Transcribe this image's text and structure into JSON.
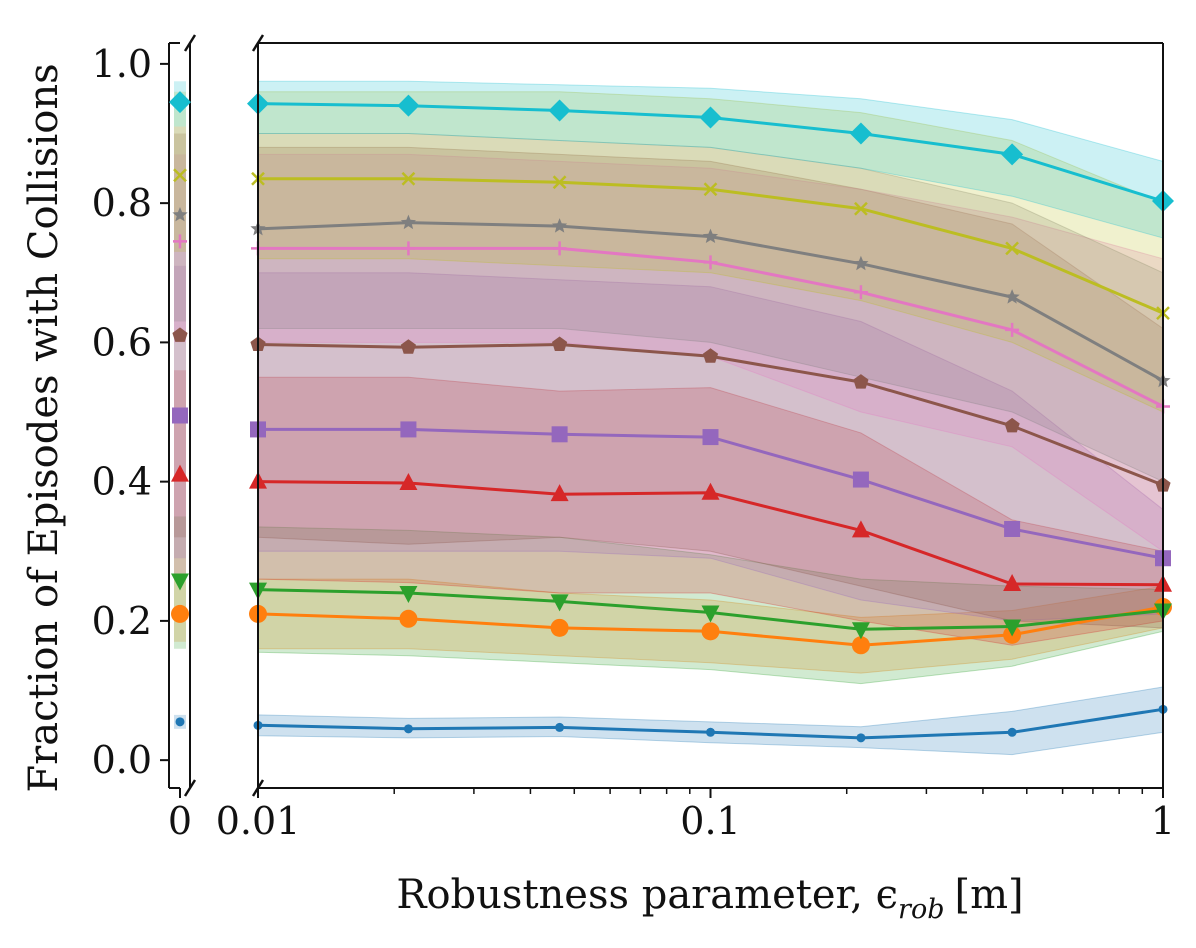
{
  "chart_data": {
    "type": "line",
    "xlabel": "Robustness parameter, ϵ",
    "xlabel_sub": "rob",
    "xlabel_unit": "[m]",
    "ylabel": "Fraction of Episodes with Collisions",
    "x_scale": "log",
    "x_broken_axis": true,
    "x_zero_tick": "0",
    "x": [
      0.01,
      0.0215,
      0.0464,
      0.1,
      0.215,
      0.464,
      1.0
    ],
    "xticks": [
      {
        "value": 0.01,
        "label": "0.01"
      },
      {
        "value": 0.1,
        "label": "0.1"
      },
      {
        "value": 1,
        "label": "1"
      }
    ],
    "yticks": [
      {
        "value": 0.0,
        "label": "0.0"
      },
      {
        "value": 0.2,
        "label": "0.2"
      },
      {
        "value": 0.4,
        "label": "0.4"
      },
      {
        "value": 0.6,
        "label": "0.6"
      },
      {
        "value": 0.8,
        "label": "0.8"
      },
      {
        "value": 1.0,
        "label": "1.0"
      }
    ],
    "xlim": [
      0.01,
      1.0
    ],
    "ylim": [
      -0.04,
      1.03
    ],
    "grid": false,
    "series": [
      {
        "color": "#1f77b4",
        "marker": "circle-small",
        "zero": 0.055,
        "values": [
          0.05,
          0.045,
          0.047,
          0.04,
          0.032,
          0.04,
          0.073
        ],
        "lower": [
          0.035,
          0.032,
          0.034,
          0.025,
          0.018,
          0.008,
          0.04
        ],
        "upper": [
          0.065,
          0.06,
          0.062,
          0.055,
          0.048,
          0.07,
          0.105
        ],
        "zero_band": [
          0.045,
          0.065
        ]
      },
      {
        "color": "#ff7f0e",
        "marker": "circle",
        "zero": 0.21,
        "values": [
          0.21,
          0.203,
          0.19,
          0.185,
          0.165,
          0.18,
          0.22
        ],
        "lower": [
          0.16,
          0.16,
          0.15,
          0.14,
          0.125,
          0.145,
          0.19
        ],
        "upper": [
          0.26,
          0.26,
          0.24,
          0.23,
          0.205,
          0.215,
          0.25
        ],
        "zero_band": [
          0.17,
          0.26
        ]
      },
      {
        "color": "#2ca02c",
        "marker": "triangle-down",
        "zero": 0.258,
        "values": [
          0.245,
          0.24,
          0.228,
          0.212,
          0.188,
          0.192,
          0.215
        ],
        "lower": [
          0.155,
          0.15,
          0.14,
          0.13,
          0.11,
          0.135,
          0.185
        ],
        "upper": [
          0.335,
          0.33,
          0.32,
          0.295,
          0.26,
          0.25,
          0.245
        ],
        "zero_band": [
          0.16,
          0.35
        ]
      },
      {
        "color": "#d62728",
        "marker": "triangle-up",
        "zero": 0.41,
        "values": [
          0.4,
          0.398,
          0.382,
          0.384,
          0.33,
          0.253,
          0.252
        ],
        "lower": [
          0.26,
          0.255,
          0.24,
          0.24,
          0.2,
          0.165,
          0.2
        ],
        "upper": [
          0.55,
          0.55,
          0.53,
          0.535,
          0.47,
          0.345,
          0.3
        ],
        "zero_band": [
          0.26,
          0.56
        ]
      },
      {
        "color": "#9467bd",
        "marker": "square",
        "zero": 0.495,
        "values": [
          0.475,
          0.475,
          0.468,
          0.464,
          0.403,
          0.332,
          0.29
        ],
        "lower": [
          0.3,
          0.3,
          0.3,
          0.29,
          0.23,
          0.2,
          0.21
        ],
        "upper": [
          0.7,
          0.7,
          0.69,
          0.68,
          0.63,
          0.53,
          0.36
        ],
        "zero_band": [
          0.29,
          0.71
        ]
      },
      {
        "color": "#8c564b",
        "marker": "pentagon",
        "zero": 0.61,
        "values": [
          0.597,
          0.593,
          0.597,
          0.58,
          0.543,
          0.48,
          0.395
        ],
        "lower": [
          0.32,
          0.31,
          0.32,
          0.3,
          0.25,
          0.2,
          0.19
        ],
        "upper": [
          0.88,
          0.88,
          0.87,
          0.86,
          0.82,
          0.77,
          0.62
        ],
        "zero_band": [
          0.32,
          0.9
        ]
      },
      {
        "color": "#e377c2",
        "marker": "plus",
        "zero": 0.745,
        "values": [
          0.735,
          0.735,
          0.735,
          0.715,
          0.672,
          0.618,
          0.508
        ],
        "lower": [
          0.6,
          0.6,
          0.6,
          0.58,
          0.5,
          0.45,
          0.3
        ],
        "upper": [
          0.87,
          0.87,
          0.86,
          0.85,
          0.82,
          0.78,
          0.72
        ],
        "zero_band": [
          0.6,
          0.87
        ]
      },
      {
        "color": "#7f7f7f",
        "marker": "star",
        "zero": 0.783,
        "values": [
          0.763,
          0.772,
          0.767,
          0.752,
          0.713,
          0.665,
          0.545
        ],
        "lower": [
          0.62,
          0.62,
          0.62,
          0.6,
          0.55,
          0.5,
          0.4
        ],
        "upper": [
          0.9,
          0.9,
          0.89,
          0.88,
          0.85,
          0.8,
          0.7
        ],
        "zero_band": [
          0.63,
          0.91
        ]
      },
      {
        "color": "#bcbd22",
        "marker": "x",
        "zero": 0.84,
        "values": [
          0.835,
          0.835,
          0.83,
          0.82,
          0.792,
          0.735,
          0.642
        ],
        "lower": [
          0.72,
          0.72,
          0.71,
          0.7,
          0.66,
          0.6,
          0.5
        ],
        "upper": [
          0.96,
          0.96,
          0.96,
          0.95,
          0.93,
          0.89,
          0.8
        ],
        "zero_band": [
          0.73,
          0.96
        ]
      },
      {
        "color": "#17becf",
        "marker": "diamond",
        "zero": 0.945,
        "values": [
          0.943,
          0.94,
          0.933,
          0.923,
          0.9,
          0.87,
          0.803
        ],
        "lower": [
          0.9,
          0.9,
          0.89,
          0.88,
          0.85,
          0.81,
          0.75
        ],
        "upper": [
          0.975,
          0.975,
          0.97,
          0.965,
          0.95,
          0.92,
          0.86
        ],
        "zero_band": [
          0.91,
          0.975
        ]
      }
    ]
  }
}
